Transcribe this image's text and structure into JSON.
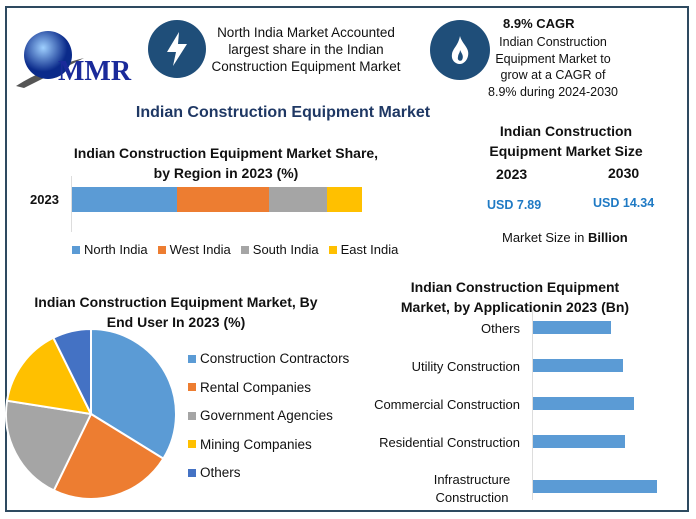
{
  "logo": {
    "text": "MMR"
  },
  "highlight1": {
    "icon": "lightning-icon",
    "text": "North India Market Accounted largest share in the Indian Construction Equipment Market"
  },
  "highlight2": {
    "icon": "flame-icon",
    "title": "8.9% CAGR",
    "text": "Indian Construction Equipment Market to grow at a CAGR of 8.9% during 2024-2030"
  },
  "main_title": "Indian Construction Equipment Market",
  "market_size": {
    "title": "Indian Construction Equipment Market Size",
    "year1": "2023",
    "year2": "2030",
    "value1": "USD 7.89",
    "value2": "USD 14.34",
    "note_prefix": "Market Size in ",
    "note_bold": "Billion"
  },
  "colors": {
    "blue": "#5b9bd5",
    "orange": "#ed7d31",
    "gray": "#a5a5a5",
    "yellow": "#ffc000",
    "darkblue": "#4472c4",
    "navy": "#1f4e79",
    "value_blue": "#1f7ac4"
  },
  "chart_data": [
    {
      "type": "bar",
      "stacked": true,
      "title": "Indian Construction Equipment Market Share, by Region in 2023 (%)",
      "categories": [
        "2023"
      ],
      "series": [
        {
          "name": "North India",
          "values": [
            36.2
          ]
        },
        {
          "name": "West India",
          "values": [
            31.7
          ]
        },
        {
          "name": "South India",
          "values": [
            20.0
          ]
        },
        {
          "name": "East India",
          "values": [
            12.1
          ]
        }
      ],
      "legend": "bottom"
    },
    {
      "type": "pie",
      "title": "Indian Construction Equipment Market, By End User In 2023 (%)",
      "labels": [
        "Construction Contractors",
        "Rental Companies",
        "Government Agencies",
        "Mining Companies",
        "Others"
      ],
      "values": [
        33.8,
        23.4,
        20.3,
        15.2,
        7.3
      ],
      "legend": "right"
    },
    {
      "type": "bar",
      "orientation": "horizontal",
      "title": "Indian Construction Equipment Market, by Applicationin 2023 (Bn)",
      "categories": [
        "Others",
        "Utility Construction",
        "Commercial Construction",
        "Residential Construction",
        "Infrastructure Construction"
      ],
      "values": [
        1.27,
        1.46,
        1.64,
        1.5,
        2.02
      ]
    }
  ]
}
